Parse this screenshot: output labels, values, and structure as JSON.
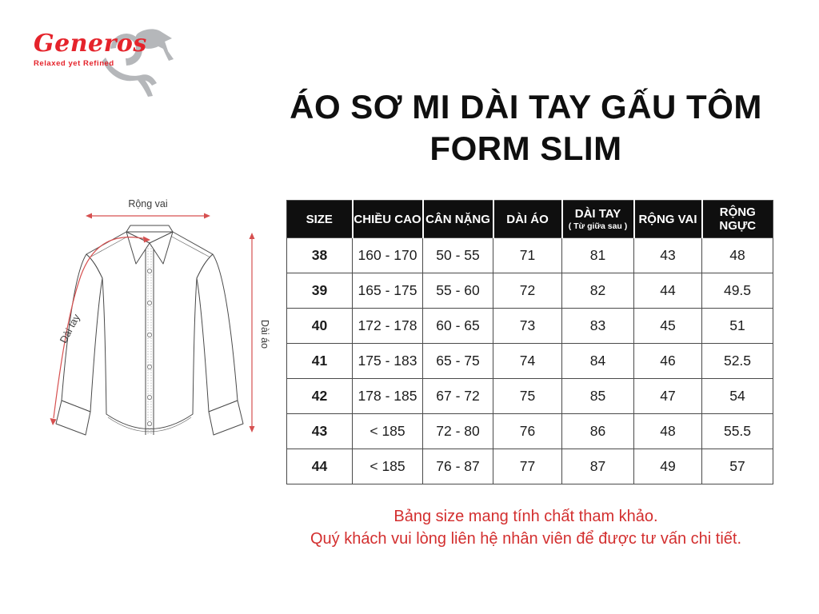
{
  "brand": {
    "name": "Generos",
    "tagline": "Relaxed yet Refined",
    "mark_icon": "ram-icon"
  },
  "title": {
    "line1": "ÁO SƠ MI DÀI TAY GẤU TÔM",
    "line2": "FORM SLIM"
  },
  "diagram": {
    "shoulder_label": "Rộng vai",
    "sleeve_label": "Dài tay",
    "length_label": "Dài áo"
  },
  "table": {
    "columns": [
      {
        "label": "SIZE",
        "sublabel": ""
      },
      {
        "label": "CHIỀU CAO",
        "sublabel": ""
      },
      {
        "label": "CÂN NẶNG",
        "sublabel": ""
      },
      {
        "label": "DÀI ÁO",
        "sublabel": ""
      },
      {
        "label": "DÀI TAY",
        "sublabel": "( Từ giữa sau )"
      },
      {
        "label": "RỘNG VAI",
        "sublabel": ""
      },
      {
        "label": "RỘNG NGỰC",
        "sublabel": ""
      }
    ],
    "rows": [
      [
        "38",
        "160 - 170",
        "50 - 55",
        "71",
        "81",
        "43",
        "48"
      ],
      [
        "39",
        "165 - 175",
        "55 - 60",
        "72",
        "82",
        "44",
        "49.5"
      ],
      [
        "40",
        "172 - 178",
        "60 - 65",
        "73",
        "83",
        "45",
        "51"
      ],
      [
        "41",
        "175 - 183",
        "65 - 75",
        "74",
        "84",
        "46",
        "52.5"
      ],
      [
        "42",
        "178 - 185",
        "67 - 72",
        "75",
        "85",
        "47",
        "54"
      ],
      [
        "43",
        "< 185",
        "72 - 80",
        "76",
        "86",
        "48",
        "55.5"
      ],
      [
        "44",
        "< 185",
        "76 - 87",
        "77",
        "87",
        "49",
        "57"
      ]
    ]
  },
  "footer": {
    "line1": "Bảng size mang tính chất tham khảo.",
    "line2": "Quý khách vui lòng liên hệ nhân viên để được tư vấn chi tiết."
  },
  "colors": {
    "logo_red": "#e5232b",
    "footer_red": "#d32f2f",
    "annotation_red": "#d65050",
    "mark_gray": "#b5b7ba",
    "table_border": "#4a4a4a",
    "header_bg": "#0f0f0f"
  }
}
